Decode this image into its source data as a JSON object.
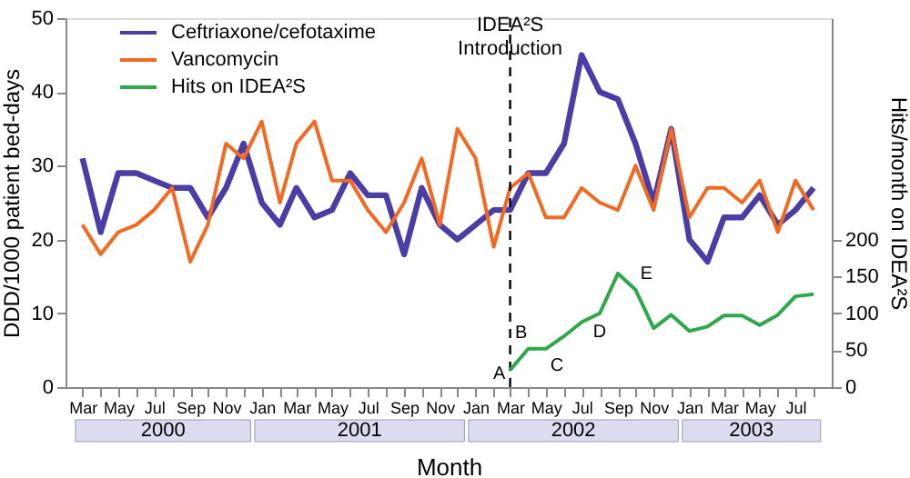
{
  "chart_data": {
    "type": "line",
    "xlabel": "Month",
    "ylabel": "DDD/1000 patient bed-days",
    "y2label": "Hits/month on IDEA²S",
    "x": [
      "2000-03",
      "2000-04",
      "2000-05",
      "2000-06",
      "2000-07",
      "2000-08",
      "2000-09",
      "2000-10",
      "2000-11",
      "2000-12",
      "2001-01",
      "2001-02",
      "2001-03",
      "2001-04",
      "2001-05",
      "2001-06",
      "2001-07",
      "2001-08",
      "2001-09",
      "2001-10",
      "2001-11",
      "2001-12",
      "2002-01",
      "2002-02",
      "2002-03",
      "2002-04",
      "2002-05",
      "2002-06",
      "2002-07",
      "2002-08",
      "2002-09",
      "2002-10",
      "2002-11",
      "2002-12",
      "2003-01",
      "2003-02",
      "2003-03",
      "2003-04",
      "2003-05",
      "2003-06",
      "2003-07",
      "2003-08"
    ],
    "series": [
      {
        "name": "Ceftriaxone/cefotaxime",
        "color": "#4a3da6",
        "values": [
          31,
          21,
          29,
          29,
          28,
          27,
          27,
          23,
          27,
          33,
          25,
          22,
          27,
          23,
          24,
          29,
          26,
          26,
          18,
          27,
          22,
          20,
          22,
          24,
          24,
          29,
          29,
          33,
          45,
          40,
          39,
          33,
          25,
          35,
          20,
          17,
          23,
          23,
          26,
          22,
          24,
          27
        ]
      },
      {
        "name": "Vancomycin",
        "color": "#f26a22",
        "values": [
          22,
          18,
          21,
          22,
          24,
          27,
          17,
          22,
          33,
          31,
          36,
          25,
          33,
          36,
          28,
          28,
          24,
          21,
          25,
          31,
          22,
          35,
          31,
          19,
          27,
          29,
          23,
          23,
          27,
          25,
          24,
          30,
          24,
          35,
          23,
          27,
          27,
          25,
          28,
          21,
          28,
          24
        ]
      },
      {
        "name": "Hits on IDEA²S",
        "color": "#2ea84a",
        "axis": "y2",
        "x": [
          "2002-03",
          "2002-04",
          "2002-05",
          "2002-06",
          "2002-07",
          "2002-08",
          "2002-09",
          "2002-10",
          "2002-11",
          "2002-12",
          "2003-01",
          "2003-02",
          "2003-03",
          "2003-04",
          "2003-05",
          "2003-06",
          "2003-07",
          "2003-08"
        ],
        "values": [
          23,
          52,
          52,
          69,
          88,
          100,
          154,
          132,
          80,
          98,
          76,
          82,
          97,
          97,
          84,
          98,
          123,
          126
        ]
      }
    ],
    "xlim": [
      "2000-02",
      "2003-09"
    ],
    "xticks": [
      {
        "value": "2000-03",
        "label": "Mar"
      },
      {
        "value": "2000-04",
        "label": null
      },
      {
        "value": "2000-05",
        "label": "May"
      },
      {
        "value": "2000-06",
        "label": null
      },
      {
        "value": "2000-07",
        "label": "Jul"
      },
      {
        "value": "2000-08",
        "label": null
      },
      {
        "value": "2000-09",
        "label": "Sep"
      },
      {
        "value": "2000-10",
        "label": null
      },
      {
        "value": "2000-11",
        "label": "Nov"
      },
      {
        "value": "2000-12",
        "label": null
      },
      {
        "value": "2001-01",
        "label": "Jan"
      },
      {
        "value": "2001-02",
        "label": null
      },
      {
        "value": "2001-03",
        "label": "Mar"
      },
      {
        "value": "2001-04",
        "label": null
      },
      {
        "value": "2001-05",
        "label": "May"
      },
      {
        "value": "2001-06",
        "label": null
      },
      {
        "value": "2001-07",
        "label": "Jul"
      },
      {
        "value": "2001-08",
        "label": null
      },
      {
        "value": "2001-09",
        "label": "Sep"
      },
      {
        "value": "2001-10",
        "label": null
      },
      {
        "value": "2001-11",
        "label": "Nov"
      },
      {
        "value": "2001-12",
        "label": null
      },
      {
        "value": "2002-01",
        "label": "Jan"
      },
      {
        "value": "2002-02",
        "label": null
      },
      {
        "value": "2002-03",
        "label": "Mar"
      },
      {
        "value": "2002-04",
        "label": null
      },
      {
        "value": "2002-05",
        "label": "May"
      },
      {
        "value": "2002-06",
        "label": null
      },
      {
        "value": "2002-07",
        "label": "Jul"
      },
      {
        "value": "2002-08",
        "label": null
      },
      {
        "value": "2002-09",
        "label": "Sep"
      },
      {
        "value": "2002-10",
        "label": null
      },
      {
        "value": "2002-11",
        "label": "Nov"
      },
      {
        "value": "2002-12",
        "label": null
      },
      {
        "value": "2003-01",
        "label": "Jan"
      },
      {
        "value": "2003-02",
        "label": null
      },
      {
        "value": "2003-03",
        "label": "Mar"
      },
      {
        "value": "2003-04",
        "label": null
      },
      {
        "value": "2003-05",
        "label": "May"
      },
      {
        "value": "2003-06",
        "label": null
      },
      {
        "value": "2003-07",
        "label": "Jul"
      },
      {
        "value": "2003-08",
        "label": null
      }
    ],
    "ylim": [
      0,
      50
    ],
    "yticks": [
      0,
      10,
      20,
      30,
      40,
      50
    ],
    "y2lim": [
      0,
      500
    ],
    "y2ticks": [
      0,
      50,
      100,
      150,
      200
    ],
    "ref_lines": [
      {
        "axis": "x",
        "value": "2002-03",
        "label": "IDEA²S Introduction",
        "line_style": "dashed",
        "color": "#000000"
      }
    ],
    "annotations": [
      {
        "text": "A",
        "x": "2002-03",
        "y": 2.3
      },
      {
        "text": "B",
        "x": "2002-04",
        "y": 5.2
      },
      {
        "text": "C",
        "x": "2002-05",
        "y": 5.2
      },
      {
        "text": "D",
        "x": "2002-08",
        "y": 10
      },
      {
        "text": "E",
        "x": "2002-10",
        "y": 13.2
      },
      "2000",
      "2001",
      "2002",
      "2003"
    ],
    "legend": "top left",
    "grid": false
  }
}
